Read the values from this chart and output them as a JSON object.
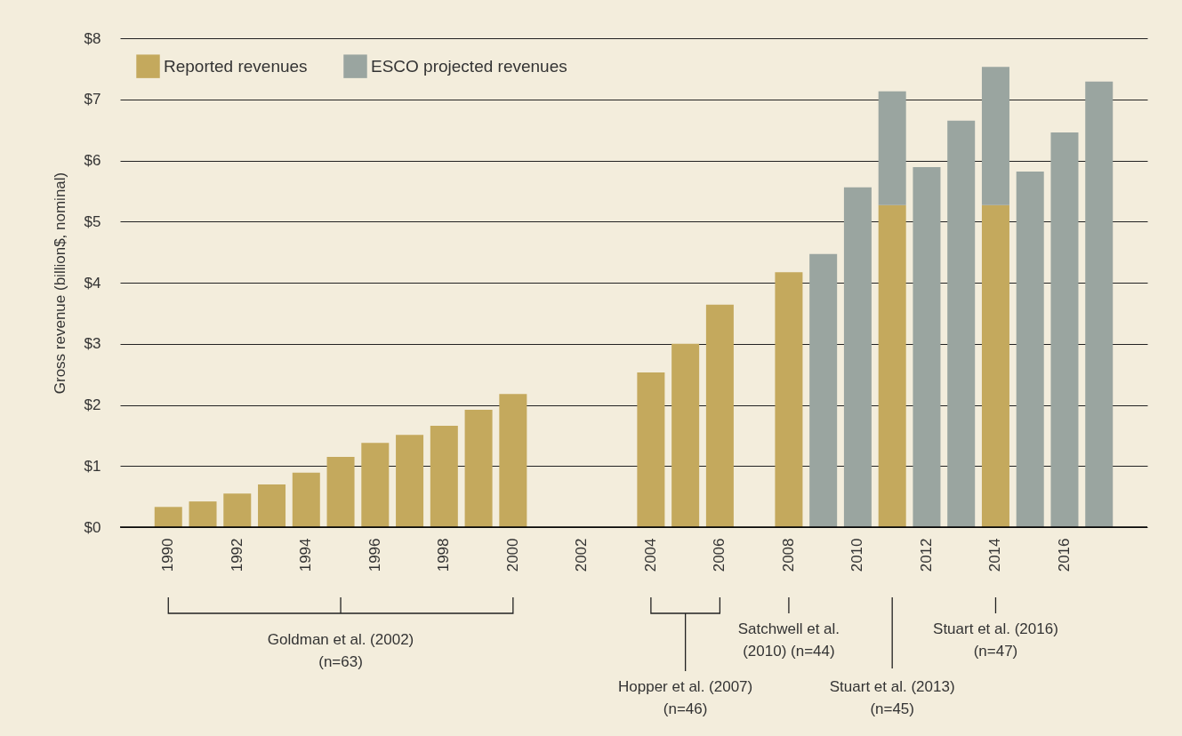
{
  "chart_data": {
    "type": "bar",
    "stacked": true,
    "ylabel": "Gross revenue (billion$, nominal)",
    "categories": [
      "1990",
      null,
      "1992",
      null,
      "1994",
      null,
      "1996",
      null,
      "1998",
      null,
      "2000",
      null,
      "2002",
      null,
      "2004",
      null,
      "2006",
      null,
      "2008",
      null,
      "2010",
      null,
      "2012",
      null,
      "2014",
      null,
      "2016",
      null
    ],
    "series": [
      {
        "name": "Reported revenues",
        "color": "#c4a95d",
        "values": [
          0.33,
          0.42,
          0.55,
          0.7,
          0.89,
          1.15,
          1.38,
          1.51,
          1.66,
          1.92,
          2.18,
          null,
          null,
          null,
          2.53,
          3.0,
          3.64,
          null,
          4.17,
          null,
          null,
          5.27,
          null,
          null,
          5.27,
          null,
          null,
          null
        ]
      },
      {
        "name": "ESCO projected revenues",
        "color": "#9aa5a0",
        "values": [
          null,
          null,
          null,
          null,
          null,
          null,
          null,
          null,
          null,
          null,
          null,
          null,
          null,
          null,
          null,
          null,
          null,
          null,
          null,
          4.47,
          5.56,
          1.86,
          5.89,
          6.65,
          2.26,
          5.82,
          6.46,
          7.29
        ]
      }
    ],
    "ylim": [
      0,
      8
    ],
    "yticks": [
      {
        "value": 0,
        "label": "$0"
      },
      {
        "value": 1,
        "label": "$1"
      },
      {
        "value": 2,
        "label": "$2"
      },
      {
        "value": 3,
        "label": "$3"
      },
      {
        "value": 4,
        "label": "$4"
      },
      {
        "value": 5,
        "label": "$5"
      },
      {
        "value": 6,
        "label": "$6"
      },
      {
        "value": 7,
        "label": "$7"
      },
      {
        "value": 8,
        "label": "$8"
      }
    ],
    "grid": "y",
    "legend": "top left",
    "annotations": [
      "Goldman et al. (2002)\n(n=63)",
      "Hopper et al. (2007)\n(n=46)",
      "Satchwell et al.\n(2010) (n=44)",
      "Stuart et al. (2013)\n(n=45)",
      "Stuart et al. (2016)\n(n=47)"
    ]
  }
}
